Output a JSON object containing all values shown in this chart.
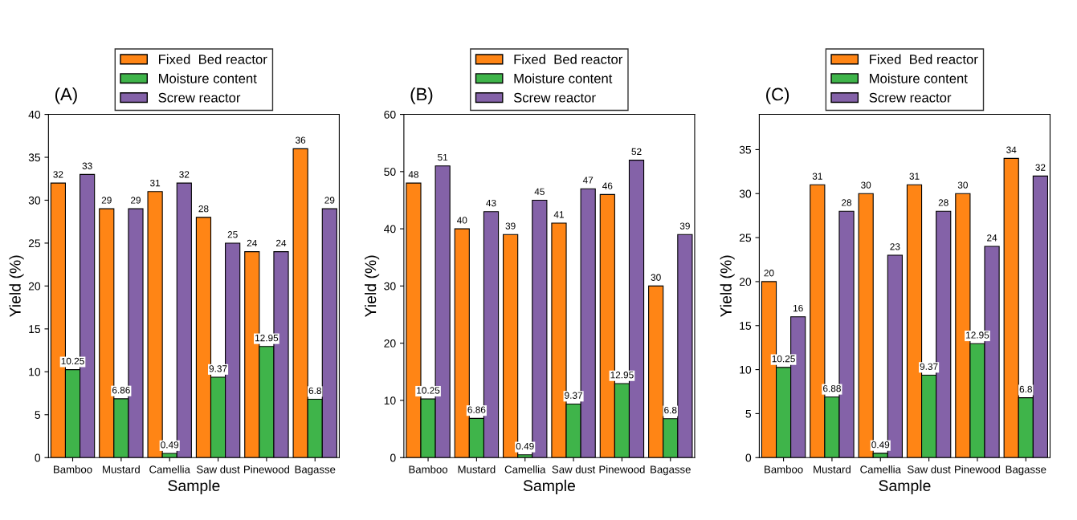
{
  "chart_data": [
    {
      "type": "bar",
      "title": "(A)",
      "xlabel": "Sample",
      "ylabel": "Yield (%)",
      "categories": [
        "Bamboo",
        "Mustard",
        "Camellia",
        "Saw dust",
        "Pinewood",
        "Bagasse"
      ],
      "ylim": [
        0,
        40
      ],
      "yticks": [
        0,
        5,
        10,
        15,
        20,
        25,
        30,
        35,
        40
      ],
      "data_labels": true,
      "legend": "top",
      "series": [
        {
          "name": "Fixed  Bed reactor",
          "color": "#ff8515",
          "values": [
            32,
            29,
            31,
            28,
            24,
            36
          ]
        },
        {
          "name": "Moisture content",
          "color": "#3fb44a",
          "values": [
            10.25,
            6.86,
            0.49,
            9.37,
            12.95,
            6.8
          ]
        },
        {
          "name": "Screw reactor",
          "color": "#8462a8",
          "values": [
            33,
            29,
            32,
            25,
            24,
            29
          ]
        }
      ]
    },
    {
      "type": "bar",
      "title": "(B)",
      "xlabel": "Sample",
      "ylabel": "Yield (%)",
      "categories": [
        "Bamboo",
        "Mustard",
        "Camellia",
        "Saw dust",
        "Pinewood",
        "Bagasse"
      ],
      "ylim": [
        0,
        60
      ],
      "yticks": [
        0,
        10,
        20,
        30,
        40,
        50,
        60
      ],
      "data_labels": true,
      "legend": "top",
      "series": [
        {
          "name": "Fixed  Bed reactor",
          "color": "#ff8515",
          "values": [
            48,
            40,
            39,
            41,
            46,
            30
          ]
        },
        {
          "name": "Moisture content",
          "color": "#3fb44a",
          "values": [
            10.25,
            6.86,
            0.49,
            9.37,
            12.95,
            6.8
          ]
        },
        {
          "name": "Screw reactor",
          "color": "#8462a8",
          "values": [
            51,
            43,
            45,
            47,
            52,
            39
          ]
        }
      ]
    },
    {
      "type": "bar",
      "title": "(C)",
      "xlabel": "Sample",
      "ylabel": "Yield (%)",
      "categories": [
        "Bamboo",
        "Mustard",
        "Camellia",
        "Saw dust",
        "Pinewood",
        "Bagasse"
      ],
      "ylim": [
        0,
        39
      ],
      "yticks": [
        0,
        5,
        10,
        15,
        20,
        25,
        30,
        35
      ],
      "data_labels": true,
      "legend": "top",
      "series": [
        {
          "name": "Fixed  Bed reactor",
          "color": "#ff8515",
          "values": [
            20,
            31,
            30,
            31,
            30,
            34
          ]
        },
        {
          "name": "Moisture content",
          "color": "#3fb44a",
          "values": [
            10.25,
            6.88,
            0.49,
            9.37,
            12.95,
            6.8
          ]
        },
        {
          "name": "Screw reactor",
          "color": "#8462a8",
          "values": [
            16,
            28,
            23,
            28,
            24,
            32
          ]
        }
      ]
    }
  ]
}
